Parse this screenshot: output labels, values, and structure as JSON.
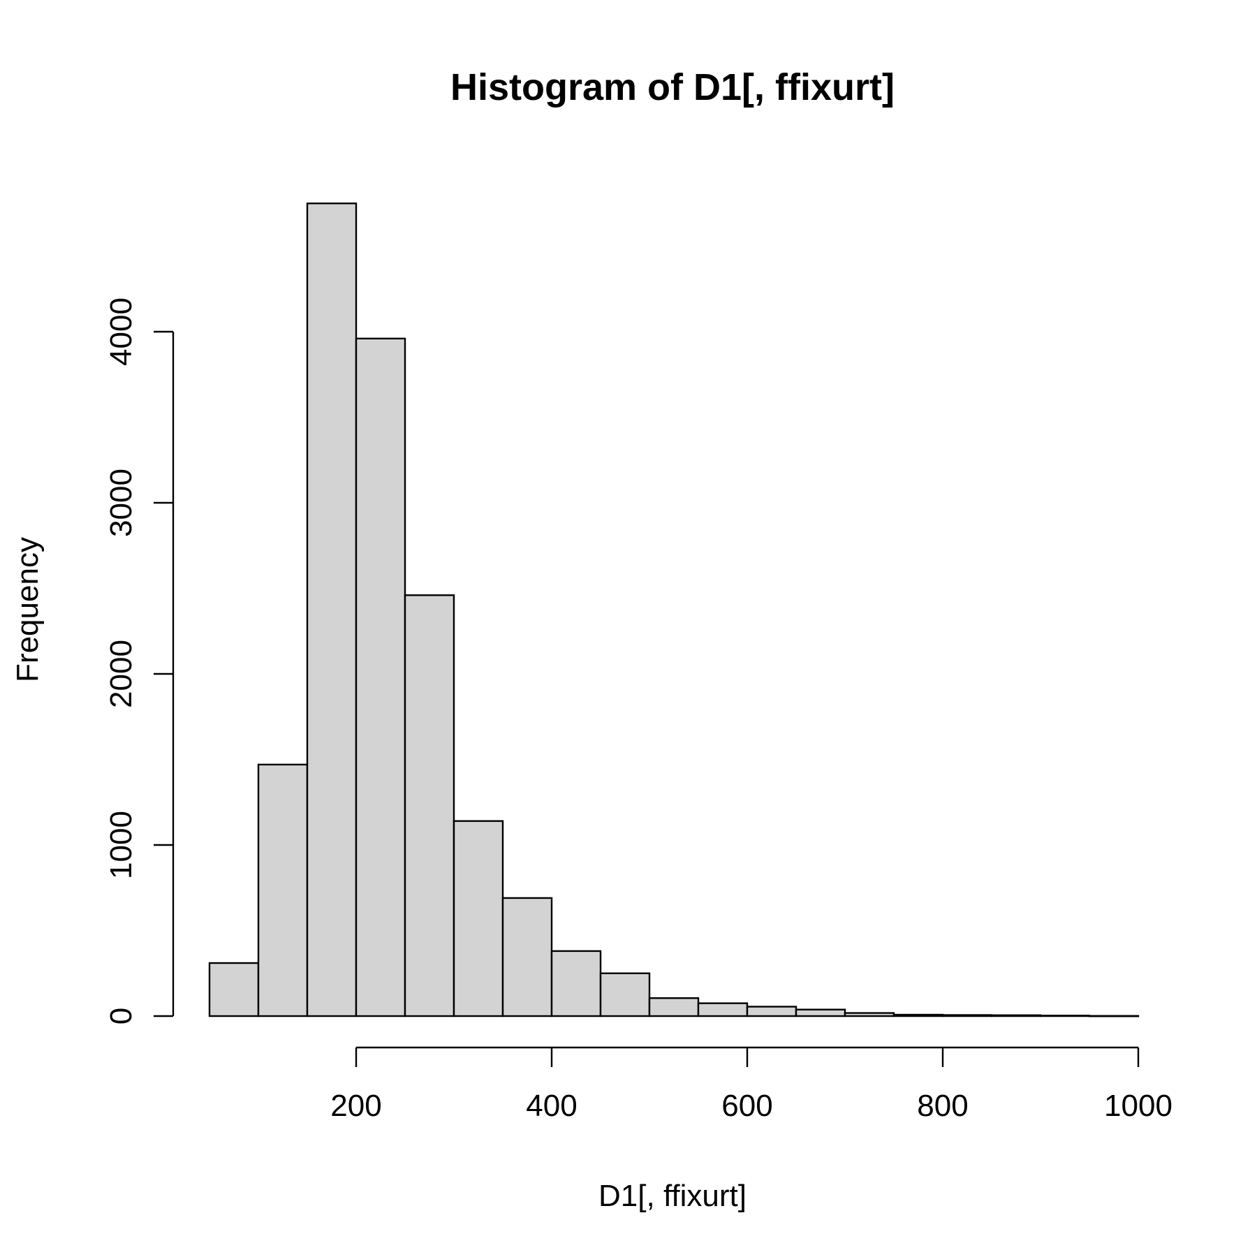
{
  "chart_data": {
    "type": "bar",
    "title": "Histogram of D1[, ffixurt]",
    "xlabel": "D1[, ffixurt]",
    "ylabel": "Frequency",
    "bin_width": 50,
    "bins": [
      {
        "start": 50,
        "end": 100,
        "count": 310
      },
      {
        "start": 100,
        "end": 150,
        "count": 1470
      },
      {
        "start": 150,
        "end": 200,
        "count": 4750
      },
      {
        "start": 200,
        "end": 250,
        "count": 3960
      },
      {
        "start": 250,
        "end": 300,
        "count": 2460
      },
      {
        "start": 300,
        "end": 350,
        "count": 1140
      },
      {
        "start": 350,
        "end": 400,
        "count": 690
      },
      {
        "start": 400,
        "end": 450,
        "count": 380
      },
      {
        "start": 450,
        "end": 500,
        "count": 250
      },
      {
        "start": 500,
        "end": 550,
        "count": 105
      },
      {
        "start": 550,
        "end": 600,
        "count": 75
      },
      {
        "start": 600,
        "end": 650,
        "count": 55
      },
      {
        "start": 650,
        "end": 700,
        "count": 38
      },
      {
        "start": 700,
        "end": 750,
        "count": 18
      },
      {
        "start": 750,
        "end": 800,
        "count": 8
      },
      {
        "start": 800,
        "end": 850,
        "count": 6
      },
      {
        "start": 850,
        "end": 900,
        "count": 5
      },
      {
        "start": 900,
        "end": 950,
        "count": 3
      },
      {
        "start": 950,
        "end": 1000,
        "count": 1
      }
    ],
    "xlim": [
      50,
      1000
    ],
    "ylim": [
      0,
      4750
    ],
    "x_ticks": [
      200,
      400,
      600,
      800,
      1000
    ],
    "x_tick_labels": [
      "200",
      "400",
      "600",
      "800",
      "1000"
    ],
    "y_ticks": [
      0,
      1000,
      2000,
      3000,
      4000
    ],
    "y_tick_labels": [
      "0",
      "1000",
      "2000",
      "3000",
      "4000"
    ],
    "grid": false,
    "colors": {
      "bar_fill": "#d3d3d3",
      "bar_stroke": "#000000"
    }
  }
}
